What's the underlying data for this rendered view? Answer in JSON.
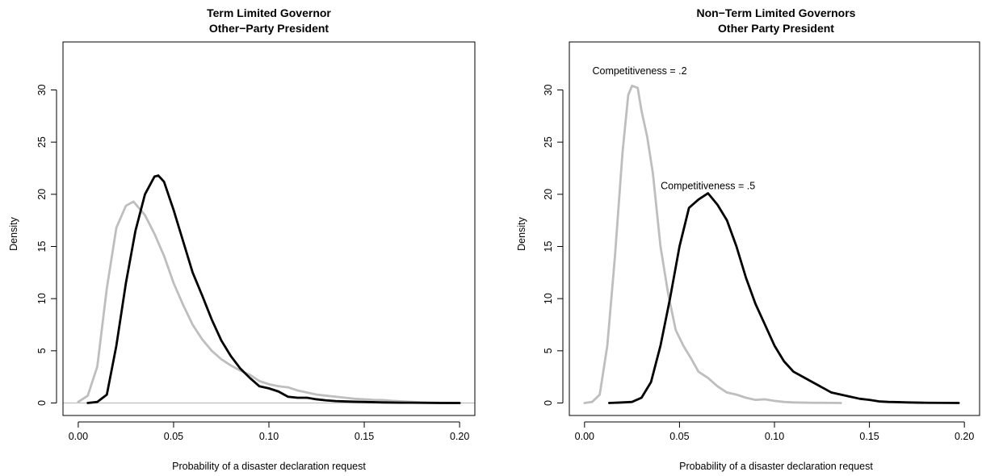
{
  "chart_data": [
    {
      "type": "line",
      "title": [
        "Term Limited Governor",
        "Other−Party President"
      ],
      "xlabel": "Probability of a disaster declaration request",
      "ylabel": "Density",
      "xlim": [
        -0.008,
        0.208
      ],
      "ylim": [
        -1.2,
        34.6
      ],
      "x_ticks": [
        0.0,
        0.05,
        0.1,
        0.15,
        0.2
      ],
      "x_tick_labels": [
        "0.00",
        "0.05",
        "0.10",
        "0.15",
        "0.20"
      ],
      "y_ticks": [
        0,
        5,
        10,
        15,
        20,
        25,
        30
      ],
      "y_tick_labels": [
        "0",
        "5",
        "10",
        "15",
        "20",
        "25",
        "30"
      ],
      "baseline": {
        "y": 0,
        "color": "#bebebe"
      },
      "annotations": [],
      "series": [
        {
          "color": "#bebebe",
          "x": [
            0.0,
            0.005,
            0.01,
            0.015,
            0.02,
            0.025,
            0.029,
            0.035,
            0.04,
            0.045,
            0.05,
            0.055,
            0.06,
            0.065,
            0.07,
            0.075,
            0.08,
            0.085,
            0.09,
            0.095,
            0.1,
            0.105,
            0.11,
            0.115,
            0.12,
            0.125,
            0.13,
            0.135,
            0.14,
            0.145,
            0.15,
            0.155,
            0.16,
            0.165,
            0.17,
            0.175,
            0.18,
            0.19,
            0.2
          ],
          "values": [
            0.1,
            0.7,
            3.5,
            11.0,
            16.8,
            18.9,
            19.3,
            18.0,
            16.2,
            14.1,
            11.5,
            9.4,
            7.5,
            6.1,
            5.0,
            4.2,
            3.6,
            3.1,
            2.7,
            2.1,
            1.8,
            1.6,
            1.5,
            1.2,
            1.0,
            0.8,
            0.7,
            0.6,
            0.5,
            0.4,
            0.35,
            0.3,
            0.28,
            0.2,
            0.15,
            0.1,
            0.05,
            0.02,
            0.0
          ]
        },
        {
          "color": "#000000",
          "x": [
            0.005,
            0.01,
            0.015,
            0.02,
            0.025,
            0.03,
            0.035,
            0.04,
            0.042,
            0.045,
            0.05,
            0.055,
            0.06,
            0.065,
            0.07,
            0.075,
            0.08,
            0.085,
            0.09,
            0.095,
            0.1,
            0.105,
            0.11,
            0.115,
            0.12,
            0.125,
            0.13,
            0.135,
            0.14,
            0.145,
            0.15,
            0.16,
            0.17,
            0.18,
            0.19,
            0.2
          ],
          "values": [
            0.0,
            0.1,
            0.8,
            5.5,
            11.5,
            16.5,
            20.0,
            21.7,
            21.8,
            21.2,
            18.5,
            15.5,
            12.5,
            10.3,
            8.0,
            6.0,
            4.5,
            3.3,
            2.4,
            1.6,
            1.4,
            1.1,
            0.6,
            0.5,
            0.5,
            0.35,
            0.25,
            0.18,
            0.15,
            0.12,
            0.1,
            0.05,
            0.03,
            0.02,
            0.0,
            0.0
          ]
        }
      ]
    },
    {
      "type": "line",
      "title": [
        "Non−Term Limited Governors",
        "Other Party President"
      ],
      "xlabel": "Probability of a disaster declaration request",
      "ylabel": "Density",
      "xlim": [
        -0.008,
        0.208
      ],
      "ylim": [
        -1.2,
        34.6
      ],
      "x_ticks": [
        0.0,
        0.05,
        0.1,
        0.15,
        0.2
      ],
      "x_tick_labels": [
        "0.00",
        "0.05",
        "0.10",
        "0.15",
        "0.20"
      ],
      "y_ticks": [
        0,
        5,
        10,
        15,
        20,
        25,
        30
      ],
      "y_tick_labels": [
        "0",
        "5",
        "10",
        "15",
        "20",
        "25",
        "30"
      ],
      "baseline": null,
      "annotations": [
        {
          "text": "Competitiveness = .2",
          "x": 0.029,
          "y": 31.8
        },
        {
          "text": "Competitiveness = .5",
          "x": 0.065,
          "y": 20.8
        }
      ],
      "series": [
        {
          "color": "#bebebe",
          "x": [
            0.0,
            0.004,
            0.008,
            0.012,
            0.016,
            0.02,
            0.023,
            0.025,
            0.028,
            0.03,
            0.033,
            0.036,
            0.04,
            0.044,
            0.048,
            0.052,
            0.056,
            0.06,
            0.065,
            0.07,
            0.075,
            0.08,
            0.085,
            0.09,
            0.095,
            0.1,
            0.105,
            0.11,
            0.12,
            0.13,
            0.135
          ],
          "values": [
            0.0,
            0.1,
            0.8,
            5.5,
            14.0,
            24.0,
            29.5,
            30.4,
            30.2,
            28.0,
            25.5,
            22.0,
            15.0,
            10.5,
            7.0,
            5.5,
            4.3,
            3.0,
            2.4,
            1.6,
            1.0,
            0.8,
            0.5,
            0.3,
            0.35,
            0.2,
            0.1,
            0.05,
            0.02,
            0.01,
            0.0
          ]
        },
        {
          "color": "#000000",
          "x": [
            0.013,
            0.02,
            0.025,
            0.03,
            0.035,
            0.04,
            0.045,
            0.05,
            0.055,
            0.06,
            0.065,
            0.07,
            0.075,
            0.08,
            0.085,
            0.09,
            0.095,
            0.1,
            0.105,
            0.11,
            0.115,
            0.12,
            0.125,
            0.13,
            0.135,
            0.14,
            0.145,
            0.15,
            0.155,
            0.16,
            0.165,
            0.17,
            0.18,
            0.19,
            0.197
          ],
          "values": [
            0.0,
            0.05,
            0.1,
            0.5,
            2.0,
            5.5,
            10.0,
            15.0,
            18.7,
            19.5,
            20.1,
            19.0,
            17.5,
            15.0,
            12.0,
            9.5,
            7.5,
            5.5,
            4.0,
            3.0,
            2.5,
            2.0,
            1.5,
            1.0,
            0.8,
            0.6,
            0.4,
            0.3,
            0.15,
            0.1,
            0.08,
            0.05,
            0.02,
            0.01,
            0.0
          ]
        }
      ]
    }
  ]
}
